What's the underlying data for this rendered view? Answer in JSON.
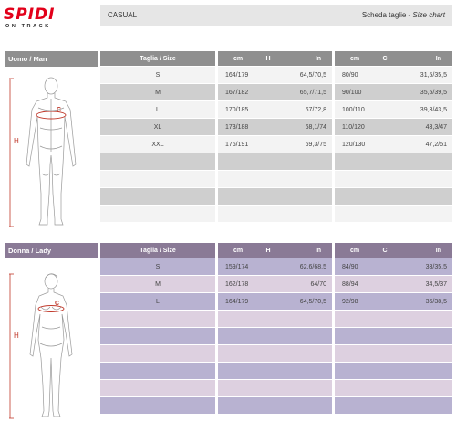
{
  "brand": {
    "name": "SPIDI",
    "tagline": "ON TRACK",
    "color": "#e2001a"
  },
  "header": {
    "category": "CASUAL",
    "title_it": "Scheda taglie -",
    "title_en": "Size chart"
  },
  "sections": [
    {
      "id": "man",
      "label": "Uomo / Man",
      "accent": "#8f8f8f",
      "headers": {
        "size": "Taglia / Size",
        "h_cm": "cm",
        "h_mark": "H",
        "h_in": "In",
        "c_cm": "cm",
        "c_mark": "C",
        "c_in": "In"
      },
      "figure_labels": {
        "chest": "C",
        "height": "H"
      },
      "rows": [
        {
          "size": "S",
          "h_cm": "164/179",
          "h_in": "64,5/70,5",
          "c_cm": "80/90",
          "c_in": "31,5/35,5"
        },
        {
          "size": "M",
          "h_cm": "167/182",
          "h_in": "65,7/71,5",
          "c_cm": "90/100",
          "c_in": "35,5/39,5"
        },
        {
          "size": "L",
          "h_cm": "170/185",
          "h_in": "67/72,8",
          "c_cm": "100/110",
          "c_in": "39,3/43,5"
        },
        {
          "size": "XL",
          "h_cm": "173/188",
          "h_in": "68,1/74",
          "c_cm": "110/120",
          "c_in": "43,3/47"
        },
        {
          "size": "XXL",
          "h_cm": "176/191",
          "h_in": "69,3/75",
          "c_cm": "120/130",
          "c_in": "47,2/51"
        },
        {
          "size": "",
          "h_cm": "",
          "h_in": "",
          "c_cm": "",
          "c_in": ""
        },
        {
          "size": "",
          "h_cm": "",
          "h_in": "",
          "c_cm": "",
          "c_in": ""
        },
        {
          "size": "",
          "h_cm": "",
          "h_in": "",
          "c_cm": "",
          "c_in": ""
        },
        {
          "size": "",
          "h_cm": "",
          "h_in": "",
          "c_cm": "",
          "c_in": ""
        }
      ]
    },
    {
      "id": "lady",
      "label": "Donna / Lady",
      "accent": "#8a7a96",
      "headers": {
        "size": "Taglia / Size",
        "h_cm": "cm",
        "h_mark": "H",
        "h_in": "In",
        "c_cm": "cm",
        "c_mark": "C",
        "c_in": "In"
      },
      "figure_labels": {
        "chest": "C",
        "height": "H"
      },
      "rows": [
        {
          "size": "S",
          "h_cm": "159/174",
          "h_in": "62,6/68,5",
          "c_cm": "84/90",
          "c_in": "33/35,5"
        },
        {
          "size": "M",
          "h_cm": "162/178",
          "h_in": "64/70",
          "c_cm": "88/94",
          "c_in": "34,5/37"
        },
        {
          "size": "L",
          "h_cm": "164/179",
          "h_in": "64,5/70,5",
          "c_cm": "92/98",
          "c_in": "36/38,5"
        },
        {
          "size": "",
          "h_cm": "",
          "h_in": "",
          "c_cm": "",
          "c_in": ""
        },
        {
          "size": "",
          "h_cm": "",
          "h_in": "",
          "c_cm": "",
          "c_in": ""
        },
        {
          "size": "",
          "h_cm": "",
          "h_in": "",
          "c_cm": "",
          "c_in": ""
        },
        {
          "size": "",
          "h_cm": "",
          "h_in": "",
          "c_cm": "",
          "c_in": ""
        },
        {
          "size": "",
          "h_cm": "",
          "h_in": "",
          "c_cm": "",
          "c_in": ""
        },
        {
          "size": "",
          "h_cm": "",
          "h_in": "",
          "c_cm": "",
          "c_in": ""
        }
      ]
    }
  ]
}
